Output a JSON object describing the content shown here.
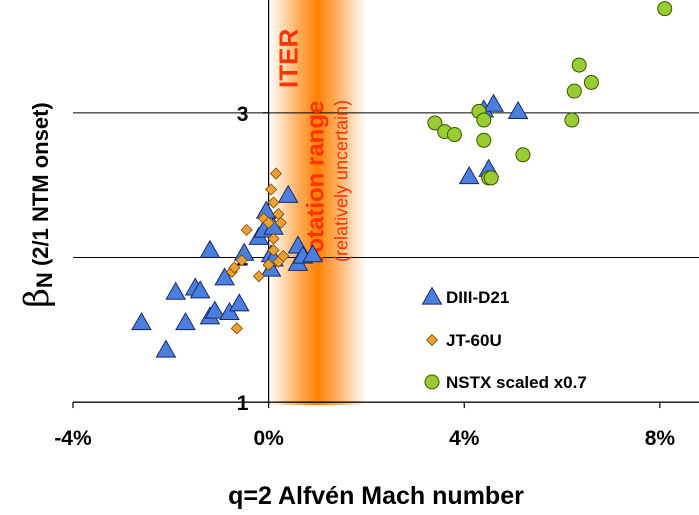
{
  "chart_data": {
    "type": "scatter",
    "xlabel": "q=2 Alfvén Mach number",
    "ylabel_symbol": "β",
    "ylabel_subscript": "N",
    "ylabel_rest": " (2/1 NTM onset)",
    "xlim": [
      -0.04,
      0.088
    ],
    "ylim": [
      0.98,
      3.78
    ],
    "x_ticks": [
      {
        "value": -0.04,
        "label": "-4%"
      },
      {
        "value": 0,
        "label": "0%"
      },
      {
        "value": 0.04,
        "label": "4%"
      },
      {
        "value": 0.08,
        "label": "8%"
      }
    ],
    "y_ticks": [
      {
        "value": 1,
        "label": "1"
      },
      {
        "value": 2,
        "label": "2"
      },
      {
        "value": 3,
        "label": "3"
      }
    ],
    "gridlines_y": [
      1,
      2,
      3
    ],
    "annotation": {
      "title": "ITER",
      "line2": "rotation range",
      "line3": "(relatively uncertain)",
      "x_center": 0.01,
      "x_range": [
        0,
        0.02
      ],
      "color": "#ff6600"
    },
    "legend_position": "bottom-right",
    "series": [
      {
        "name": "DIII-D21",
        "marker": "triangle",
        "color": "#4a7fe0",
        "points": [
          [
            -0.026,
            1.55
          ],
          [
            -0.021,
            1.36
          ],
          [
            -0.019,
            1.76
          ],
          [
            -0.017,
            1.55
          ],
          [
            -0.015,
            1.79
          ],
          [
            -0.014,
            1.77
          ],
          [
            -0.012,
            1.59
          ],
          [
            -0.012,
            2.05
          ],
          [
            -0.011,
            1.63
          ],
          [
            -0.009,
            1.86
          ],
          [
            -0.008,
            1.62
          ],
          [
            -0.006,
            1.68
          ],
          [
            -0.005,
            2.03
          ],
          [
            -0.002,
            2.14
          ],
          [
            -0.001,
            2.19
          ],
          [
            -0.0005,
            2.32
          ],
          [
            0.0005,
            1.92
          ],
          [
            0.0005,
            2.02
          ],
          [
            0.001,
            2.21
          ],
          [
            0.001,
            1.99
          ],
          [
            0.004,
            2.43
          ],
          [
            0.006,
            1.96
          ],
          [
            0.006,
            2.08
          ],
          [
            0.007,
            2.01
          ],
          [
            0.009,
            2.02
          ],
          [
            0.041,
            2.56
          ],
          [
            0.044,
            3.02
          ],
          [
            0.045,
            2.61
          ],
          [
            0.046,
            3.06
          ],
          [
            0.051,
            3.01
          ]
        ]
      },
      {
        "name": "JT-60U",
        "marker": "diamond",
        "color": "#f0a030",
        "points": [
          [
            -0.0075,
            1.9
          ],
          [
            -0.007,
            1.93
          ],
          [
            -0.0065,
            1.51
          ],
          [
            -0.0055,
            1.98
          ],
          [
            -0.0045,
            2.19
          ],
          [
            -0.002,
            1.87
          ],
          [
            -0.001,
            2.27
          ],
          [
            0.0,
            1.95
          ],
          [
            0.0,
            2.24
          ],
          [
            0.0005,
            2.47
          ],
          [
            0.001,
            2.05
          ],
          [
            0.001,
            2.38
          ],
          [
            0.001,
            2.13
          ],
          [
            0.0015,
            2.58
          ],
          [
            0.002,
            2.3
          ],
          [
            0.002,
            1.97
          ],
          [
            0.0025,
            2.24
          ],
          [
            0.003,
            2.01
          ]
        ]
      },
      {
        "name": "NSTX scaled x0.7",
        "marker": "circle",
        "color": "#99cc33",
        "points": [
          [
            0.034,
            2.93
          ],
          [
            0.036,
            2.87
          ],
          [
            0.038,
            2.85
          ],
          [
            0.043,
            3.01
          ],
          [
            0.044,
            2.95
          ],
          [
            0.044,
            2.81
          ],
          [
            0.045,
            2.55
          ],
          [
            0.0455,
            2.55
          ],
          [
            0.052,
            2.71
          ],
          [
            0.062,
            2.95
          ],
          [
            0.0625,
            3.15
          ],
          [
            0.0635,
            3.33
          ],
          [
            0.066,
            3.21
          ],
          [
            0.081,
            3.72
          ]
        ]
      }
    ]
  }
}
